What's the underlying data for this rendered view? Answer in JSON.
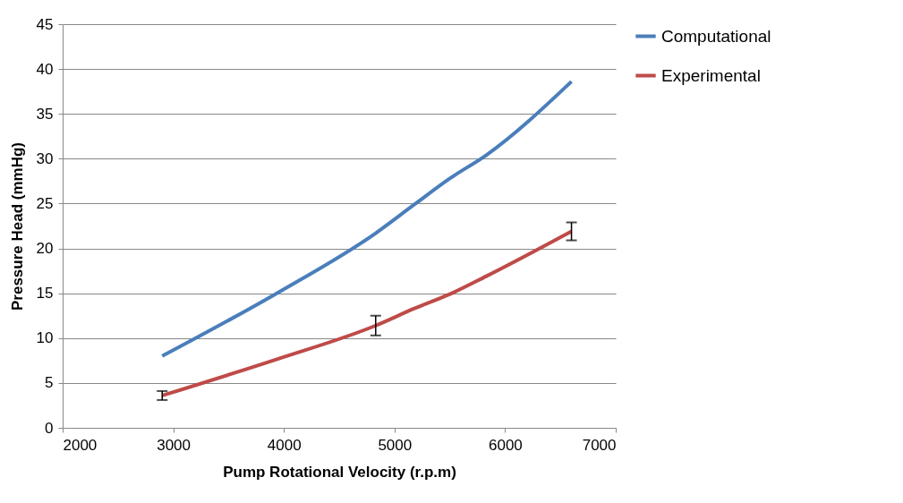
{
  "chart_data": {
    "type": "line",
    "xlabel": "Pump Rotational Velocity (r.p.m)",
    "ylabel": "Pressure Head (mmHg)",
    "x": [
      2900,
      3950,
      4830,
      5180,
      5500,
      5830,
      6600
    ],
    "series": [
      {
        "name": "Computational",
        "color": "#4a7ebb",
        "values": [
          8.0,
          15.1,
          21.7,
          24.9,
          27.8,
          30.4,
          38.6
        ]
      },
      {
        "name": "Experimental",
        "color": "#be4b48",
        "values": [
          3.6,
          7.7,
          11.4,
          13.3,
          14.9,
          16.9,
          21.9
        ],
        "errors": [
          0.5,
          null,
          1.1,
          null,
          null,
          null,
          1.0
        ]
      }
    ],
    "xlim": [
      2000,
      7000
    ],
    "xticks": [
      2000,
      3000,
      4000,
      5000,
      6000,
      7000
    ],
    "ylim": [
      0,
      45
    ],
    "yticks": [
      0,
      5,
      10,
      15,
      20,
      25,
      30,
      35,
      40,
      45
    ],
    "grid": "y",
    "legend": "right",
    "marker": "none",
    "line_style": "solid"
  }
}
